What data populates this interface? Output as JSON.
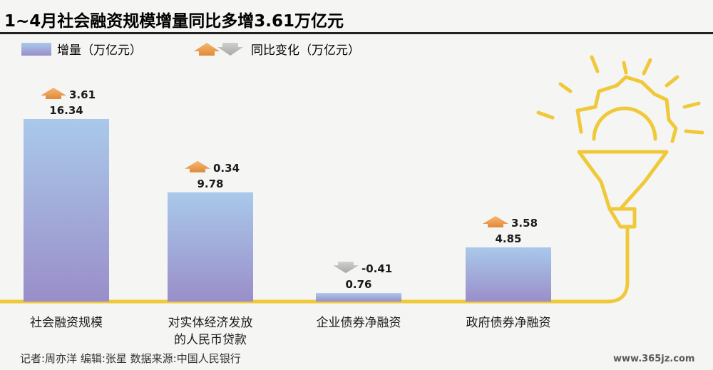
{
  "chart_data": {
    "type": "bar",
    "title": "1~4月社会融资规模增量同比多增3.61万亿元",
    "legend": {
      "series_label": "增量（万亿元）",
      "change_label": "同比变化（万亿元）"
    },
    "categories": [
      "社会融资规模",
      "对实体经济发放的人民币贷款",
      "企业债券净融资",
      "政府债券净融资"
    ],
    "category_lines": [
      [
        "社会融资规模"
      ],
      [
        "对实体经济发放",
        "的人民币贷款"
      ],
      [
        "企业债券净融资"
      ],
      [
        "政府债券净融资"
      ]
    ],
    "series": [
      {
        "name": "增量（万亿元）",
        "values": [
          16.34,
          9.78,
          0.76,
          4.85
        ]
      }
    ],
    "yoy_change": [
      3.61,
      0.34,
      -0.41,
      3.58
    ],
    "value_labels": [
      "16.34",
      "9.78",
      "0.76",
      "4.85"
    ],
    "change_labels": [
      "3.61",
      "0.34",
      "-0.41",
      "3.58"
    ],
    "ylim": [
      0,
      18
    ],
    "grid": false,
    "legend_position": "top-left"
  },
  "footer": {
    "credits": "记者:周亦洋   编辑:张星   数据来源:中国人民银行",
    "watermark": "www.365jz.com"
  },
  "colors": {
    "bar_top": "#a9c9ea",
    "bar_bottom": "#9a8ec9",
    "up_arrow": "#f0a050",
    "down_arrow": "#b8b8b8",
    "bulb": "#f0c93a",
    "title_rule": "#222222"
  }
}
